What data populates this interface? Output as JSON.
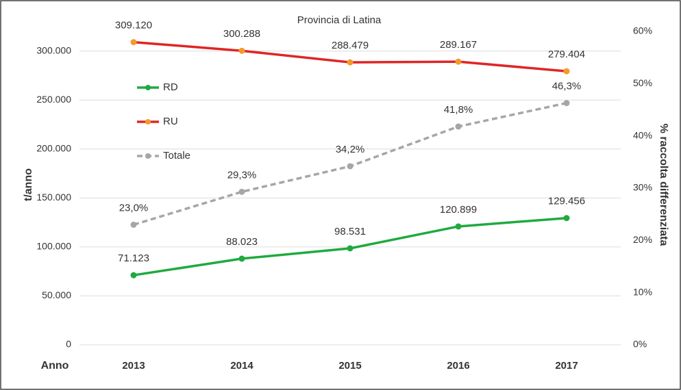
{
  "chart_data": {
    "type": "line",
    "title": "Provincia di Latina",
    "x_label": "Anno",
    "y_label": "t/anno",
    "y2_label": "% raccolta differenziata",
    "categories": [
      "2013",
      "2014",
      "2015",
      "2016",
      "2017"
    ],
    "ylim": [
      0,
      320000
    ],
    "yticks": [
      {
        "value": 0,
        "label": "0"
      },
      {
        "value": 50000,
        "label": "50.000"
      },
      {
        "value": 100000,
        "label": "100.000"
      },
      {
        "value": 150000,
        "label": "150.000"
      },
      {
        "value": 200000,
        "label": "200.000"
      },
      {
        "value": 250000,
        "label": "250.000"
      },
      {
        "value": 300000,
        "label": "300.000"
      }
    ],
    "y2lim": [
      0,
      60
    ],
    "y2ticks": [
      {
        "value": 0,
        "label": "0%"
      },
      {
        "value": 10,
        "label": "10%"
      },
      {
        "value": 20,
        "label": "20%"
      },
      {
        "value": 30,
        "label": "30%"
      },
      {
        "value": 40,
        "label": "40%"
      },
      {
        "value": 50,
        "label": "50%"
      },
      {
        "value": 60,
        "label": "60%"
      }
    ],
    "grid": true,
    "series": [
      {
        "name": "RD",
        "color": "#1faa3f",
        "marker_color": "#1faa3f",
        "dashed": false,
        "values": [
          71123,
          88023,
          98531,
          120899,
          129456
        ],
        "value_labels": [
          "71.123",
          "88.023",
          "98.531",
          "120.899",
          "129.456"
        ]
      },
      {
        "name": "RU",
        "color": "#e02525",
        "marker_color": "#f39a2a",
        "dashed": false,
        "values": [
          309120,
          300288,
          288479,
          289167,
          279404
        ],
        "value_labels": [
          "309.120",
          "300.288",
          "288.479",
          "289.167",
          "279.404"
        ]
      },
      {
        "name": "Totale",
        "color": "#a6a6a6",
        "marker_color": "#a6a6a6",
        "dashed": true,
        "axis": "y2",
        "values": [
          23.0,
          29.3,
          34.2,
          41.8,
          46.3
        ],
        "value_labels": [
          "23,0%",
          "29,3%",
          "34,2%",
          "41,8%",
          "46,3%"
        ]
      }
    ]
  }
}
